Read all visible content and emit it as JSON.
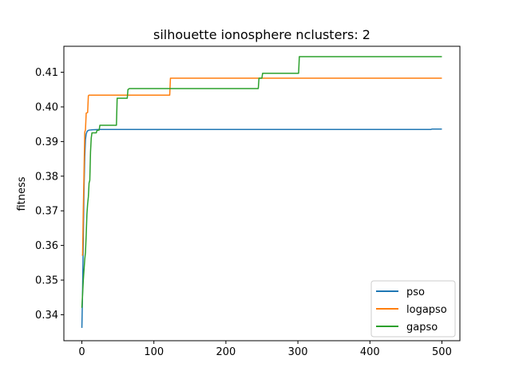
{
  "chart_data": {
    "type": "line",
    "title": "silhouette ionosphere nclusters: 2",
    "xlabel": "",
    "ylabel": "fitness",
    "xlim": [
      -25,
      525
    ],
    "ylim": [
      0.3325,
      0.4175
    ],
    "xticks": [
      0,
      100,
      200,
      300,
      400,
      500
    ],
    "xtick_labels": [
      "0",
      "100",
      "200",
      "300",
      "400",
      "500"
    ],
    "yticks": [
      0.34,
      0.35,
      0.36,
      0.37,
      0.38,
      0.39,
      0.4,
      0.41
    ],
    "ytick_labels": [
      "0.34",
      "0.35",
      "0.36",
      "0.37",
      "0.38",
      "0.39",
      "0.40",
      "0.41"
    ],
    "grid": false,
    "legend_position": "lower-right",
    "series": [
      {
        "name": "pso",
        "color": "#1f77b4",
        "points": [
          [
            0,
            0.3362
          ],
          [
            1,
            0.3471
          ],
          [
            2,
            0.3623
          ],
          [
            3,
            0.3767
          ],
          [
            4,
            0.3856
          ],
          [
            5,
            0.3906
          ],
          [
            6,
            0.3922
          ],
          [
            7,
            0.3928
          ],
          [
            8,
            0.3931
          ],
          [
            10,
            0.3933
          ],
          [
            15,
            0.3934
          ],
          [
            25,
            0.3935
          ],
          [
            100,
            0.3935
          ],
          [
            300,
            0.3935
          ],
          [
            485,
            0.3935
          ],
          [
            486,
            0.3936
          ],
          [
            500,
            0.3936
          ]
        ]
      },
      {
        "name": "logapso",
        "color": "#ff7f0e",
        "points": [
          [
            0,
            0.3572
          ],
          [
            1,
            0.3572
          ],
          [
            2,
            0.3705
          ],
          [
            3,
            0.3811
          ],
          [
            4,
            0.3927
          ],
          [
            5,
            0.3934
          ],
          [
            6,
            0.3982
          ],
          [
            8,
            0.3984
          ],
          [
            9,
            0.4032
          ],
          [
            10,
            0.4034
          ],
          [
            122,
            0.4034
          ],
          [
            123,
            0.4083
          ],
          [
            500,
            0.4083
          ]
        ]
      },
      {
        "name": "gapso",
        "color": "#2ca02c",
        "points": [
          [
            0,
            0.342
          ],
          [
            2,
            0.35
          ],
          [
            4,
            0.356
          ],
          [
            5,
            0.358
          ],
          [
            6,
            0.363
          ],
          [
            7,
            0.369
          ],
          [
            8,
            0.372
          ],
          [
            9,
            0.374
          ],
          [
            10,
            0.378
          ],
          [
            11,
            0.3788
          ],
          [
            12,
            0.387
          ],
          [
            13,
            0.391
          ],
          [
            14,
            0.3925
          ],
          [
            20,
            0.3925
          ],
          [
            21,
            0.3932
          ],
          [
            24,
            0.3933
          ],
          [
            25,
            0.3947
          ],
          [
            48,
            0.3947
          ],
          [
            49,
            0.4025
          ],
          [
            63,
            0.4025
          ],
          [
            64,
            0.405
          ],
          [
            66,
            0.4053
          ],
          [
            245,
            0.4053
          ],
          [
            246,
            0.4083
          ],
          [
            250,
            0.4083
          ],
          [
            251,
            0.4097
          ],
          [
            301,
            0.4097
          ],
          [
            302,
            0.4145
          ],
          [
            500,
            0.4145
          ]
        ]
      }
    ]
  }
}
